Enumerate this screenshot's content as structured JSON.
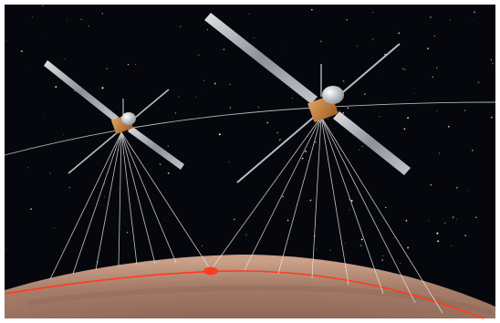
{
  "scene": {
    "subject": "two-satellites-over-planet",
    "colors": {
      "space": "#05070c",
      "planet_light": "#caa088",
      "planet_dark": "#7e5a4b",
      "ground_track": "#ff3b1f",
      "beam": "#e8e8e8",
      "panel": "#a9adb3",
      "body": "#c8823a"
    }
  }
}
